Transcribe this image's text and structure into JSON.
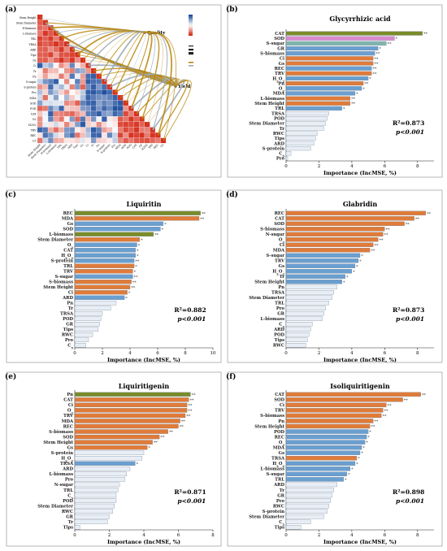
{
  "figure": {
    "panel_a": {
      "letter": "(a)",
      "quality_label": "Quality",
      "yield_label": "Yield",
      "variables": [
        "Stem Height",
        "Stem Diameter",
        "N-biomass",
        "L-biomass",
        "TRL",
        "TRSA",
        "ARD",
        "Tips",
        "Gs",
        "Ci",
        "Tr",
        "Pn",
        "S-sugar",
        "S-protein",
        "Pro",
        "MDA",
        "SOD",
        "POD",
        "CAT",
        "O2",
        "H2O2",
        "TRV",
        "REC",
        "C5"
      ],
      "positive_color": "#d7301f",
      "negative_color": "#1f4e9e",
      "link_color": "#b8860b"
    },
    "bar_colors": {
      "orange": "#e07b39",
      "blue": "#6a9fd0",
      "olive": "#7a8c2a",
      "pink": "#d98bd0",
      "pale": "#e8eef6",
      "teal": "#7fb5b0"
    }
  },
  "chart_data": [
    {
      "panel": "(b)",
      "type": "bar",
      "orientation": "horizontal",
      "title": "Glycyrrhizic acid",
      "xlabel": "Importance (IncMSE, %)",
      "xlim": [
        0,
        9
      ],
      "xticks": [
        0,
        2,
        4,
        6,
        8
      ],
      "r2_text": "R²=0.873",
      "p_text": "p<0.001",
      "categories": [
        "CAT",
        "SOD",
        "S-sugar",
        "GR",
        "S-biomass",
        "Ci",
        "Gs",
        "REC",
        "TRV",
        "H2O2",
        "Pn",
        "O2",
        "MDA",
        "L-biomass",
        "Stem Height",
        "TRL",
        "TRSA",
        "POD",
        "Stem Diameter",
        "Tr",
        "RWC",
        "Tips",
        "ARD",
        "S-protein",
        "C5",
        "Pro"
      ],
      "values": [
        8.3,
        6.6,
        6.1,
        5.6,
        5.4,
        5.3,
        5.3,
        5.2,
        5.2,
        5.0,
        4.7,
        4.6,
        4.2,
        3.9,
        3.9,
        3.4,
        2.6,
        2.5,
        2.4,
        2.3,
        1.9,
        1.8,
        1.7,
        1.5,
        0.3,
        0.1
      ],
      "stars": [
        "**",
        "*",
        "**",
        "*",
        "**",
        "**",
        "**",
        "**",
        "**",
        "*",
        "**",
        "*",
        "*",
        "**",
        "**",
        "*",
        "",
        "",
        "",
        "",
        "",
        "",
        "",
        "",
        "",
        ""
      ],
      "colors": [
        "olive",
        "pink",
        "teal",
        "blue",
        "blue",
        "orange",
        "orange",
        "blue",
        "orange",
        "blue",
        "orange",
        "blue",
        "blue",
        "orange",
        "orange",
        "blue",
        "pale",
        "pale",
        "pale",
        "pale",
        "pale",
        "pale",
        "pale",
        "pale",
        "pale",
        "pale"
      ]
    },
    {
      "panel": "(c)",
      "type": "bar",
      "orientation": "horizontal",
      "title": "Liquiritin",
      "xlabel": "Importance (IncMSE, %)",
      "xlim": [
        0,
        10
      ],
      "xticks": [
        0,
        2,
        4,
        6,
        8,
        10
      ],
      "r2_text": "R²=0.882",
      "p_text": "p<0.001",
      "categories": [
        "REC",
        "MDA",
        "Gs",
        "SOD",
        "L-biomass",
        "Stem Diameter",
        "O2",
        "CAT",
        "H2O2",
        "S-protein",
        "TRL",
        "TRV",
        "S-sugar",
        "S-biomass",
        "Stem Height",
        "Ci",
        "ARD",
        "Pn",
        "Tr",
        "TRSA",
        "POD",
        "GR",
        "Tips",
        "RWC",
        "Pro",
        "C5"
      ],
      "values": [
        9.1,
        9.0,
        6.4,
        6.2,
        5.7,
        4.7,
        4.5,
        4.4,
        4.4,
        4.3,
        4.3,
        4.2,
        4.2,
        4.1,
        4.0,
        3.8,
        3.6,
        3.0,
        2.6,
        2.0,
        1.9,
        1.8,
        1.7,
        1.3,
        1.0,
        0.8
      ],
      "stars": [
        "**",
        "**",
        "*",
        "*",
        "**",
        "*",
        "*",
        "*",
        "*",
        "**",
        "*",
        "*",
        "**",
        "**",
        "**",
        "*",
        "*",
        "",
        "",
        "",
        "",
        "",
        "",
        "",
        "",
        ""
      ],
      "colors": [
        "olive",
        "orange",
        "blue",
        "blue",
        "olive",
        "orange",
        "blue",
        "blue",
        "blue",
        "blue",
        "orange",
        "orange",
        "blue",
        "orange",
        "orange",
        "orange",
        "blue",
        "pale",
        "pale",
        "pale",
        "pale",
        "pale",
        "pale",
        "pale",
        "pale",
        "pale"
      ]
    },
    {
      "panel": "(d)",
      "type": "bar",
      "orientation": "horizontal",
      "title": "Glabridin",
      "xlabel": "Importance (IncMSE, %)",
      "xlim": [
        0,
        9
      ],
      "xticks": [
        0,
        2,
        4,
        6,
        8
      ],
      "r2_text": "R²=0.873",
      "p_text": "p<0.001",
      "categories": [
        "REC",
        "CAT",
        "SOD",
        "S-biomass",
        "N-sugar",
        "O2",
        "Ci",
        "MDA",
        "S-sugar",
        "TRV",
        "Gs",
        "H2O2",
        "Tr",
        "Stem Height",
        "Pn",
        "TRSA",
        "Stem Diameter",
        "TRL",
        "Pro",
        "GR",
        "L-biomass",
        "C5",
        "ARD",
        "POD",
        "Tips",
        "RWC"
      ],
      "values": [
        8.5,
        7.8,
        7.2,
        6.0,
        5.9,
        5.6,
        5.3,
        5.1,
        4.5,
        4.4,
        4.2,
        4.0,
        3.6,
        3.4,
        3.1,
        2.9,
        2.8,
        2.6,
        2.4,
        2.3,
        2.2,
        1.6,
        1.5,
        1.4,
        1.3,
        1.2
      ],
      "stars": [
        "**",
        "**",
        "**",
        "**",
        "**",
        "**",
        "**",
        "**",
        "*",
        "*",
        "*",
        "*",
        "*",
        "*",
        "",
        "",
        "",
        "",
        "",
        "",
        "",
        "",
        "",
        "",
        "",
        ""
      ],
      "colors": [
        "orange",
        "orange",
        "orange",
        "orange",
        "orange",
        "orange",
        "orange",
        "orange",
        "blue",
        "blue",
        "blue",
        "blue",
        "blue",
        "blue",
        "pale",
        "pale",
        "pale",
        "pale",
        "pale",
        "pale",
        "pale",
        "pale",
        "pale",
        "pale",
        "pale",
        "pale"
      ]
    },
    {
      "panel": "(e)",
      "type": "bar",
      "orientation": "horizontal",
      "title": "Liquiritigenin",
      "xlabel": "Importance (IncMSE, %)",
      "xlim": [
        0,
        8
      ],
      "xticks": [
        0,
        2,
        4,
        6,
        8
      ],
      "r2_text": "R²=0.871",
      "p_text": "p<0.001",
      "categories": [
        "Pn",
        "CAT",
        "Ci",
        "O2",
        "TRV",
        "MDA",
        "REC",
        "S-biomass",
        "SOD",
        "Stem Height",
        "Gs",
        "S-protein",
        "H2O2",
        "TRSA",
        "ARD",
        "L-biomass",
        "Pro",
        "N-sugar",
        "TRL",
        "C5",
        "POD",
        "Stem Diameter",
        "RWC",
        "GR",
        "Tr",
        "Tips"
      ],
      "values": [
        6.7,
        6.6,
        6.5,
        6.5,
        6.4,
        6.1,
        6.0,
        5.4,
        4.9,
        4.5,
        4.2,
        4.0,
        3.9,
        3.5,
        3.2,
        3.0,
        2.9,
        2.6,
        2.5,
        2.4,
        2.4,
        2.3,
        2.2,
        2.0,
        1.9,
        0.3
      ],
      "stars": [
        "**",
        "**",
        "**",
        "**",
        "**",
        "**",
        "**",
        "**",
        "**",
        "**",
        "*",
        "",
        "",
        "*",
        "",
        "",
        "",
        "",
        "",
        "",
        "",
        "",
        "",
        "",
        "",
        ""
      ],
      "colors": [
        "olive",
        "orange",
        "orange",
        "orange",
        "orange",
        "orange",
        "orange",
        "orange",
        "orange",
        "orange",
        "orange",
        "pale",
        "pale",
        "blue",
        "pale",
        "pale",
        "pale",
        "pale",
        "pale",
        "pale",
        "pale",
        "pale",
        "pale",
        "pale",
        "pale",
        "pale"
      ]
    },
    {
      "panel": "(f)",
      "type": "bar",
      "orientation": "horizontal",
      "title": "Isoliquiritigenin",
      "xlabel": "Importance (IncMSE, %)",
      "xlim": [
        0,
        9
      ],
      "xticks": [
        0,
        2,
        4,
        6,
        8
      ],
      "r2_text": "R²=0.898",
      "p_text": "p<0.001",
      "categories": [
        "CAT",
        "SOD",
        "Ci",
        "TRV",
        "S-biomass",
        "Pn",
        "Stem Height",
        "POD",
        "REC",
        "O2",
        "MDA",
        "Gs",
        "TRSA",
        "H2O2",
        "L-biomass",
        "S-sugar",
        "TRL",
        "ARD",
        "Tr",
        "GR",
        "Pro",
        "RWC",
        "S-protein",
        "Stem Diameter",
        "C5",
        "Tips"
      ],
      "values": [
        8.2,
        7.1,
        6.1,
        5.9,
        5.8,
        5.3,
        5.1,
        5.0,
        4.9,
        4.8,
        4.6,
        4.5,
        4.3,
        4.2,
        3.9,
        3.7,
        3.5,
        3.1,
        2.9,
        2.8,
        2.7,
        2.6,
        2.5,
        2.3,
        1.5,
        0.9
      ],
      "stars": [
        "**",
        "**",
        "**",
        "**",
        "**",
        "**",
        "**",
        "*",
        "*",
        "*",
        "*",
        "*",
        "*",
        "*",
        "*",
        "*",
        "*",
        "",
        "",
        "",
        "",
        "",
        "",
        "",
        "",
        ""
      ],
      "colors": [
        "orange",
        "orange",
        "orange",
        "orange",
        "orange",
        "orange",
        "orange",
        "blue",
        "blue",
        "blue",
        "blue",
        "blue",
        "orange",
        "blue",
        "blue",
        "blue",
        "blue",
        "pale",
        "pale",
        "pale",
        "pale",
        "pale",
        "pale",
        "pale",
        "pale",
        "pale"
      ]
    }
  ]
}
